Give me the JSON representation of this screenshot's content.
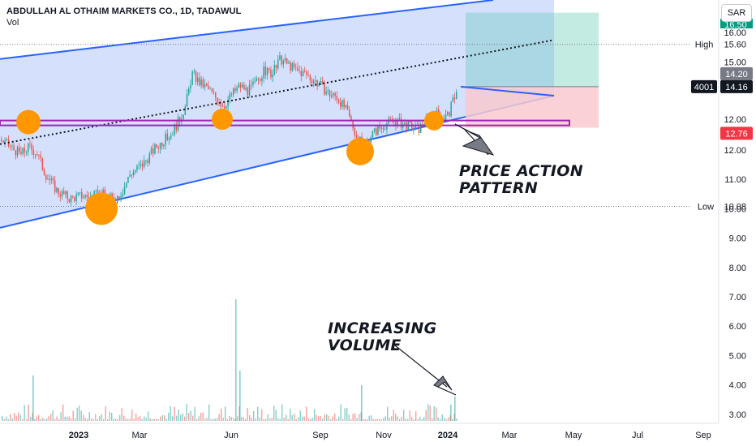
{
  "header": {
    "title": "ABDULLAH AL OTHAIM MARKETS CO., 1D, TADAWUL",
    "volume_label": "Vol"
  },
  "currency_button": "SAR",
  "annotations": {
    "price_action": [
      "PRICE ACTION",
      "PATTERN"
    ],
    "volume": [
      "INCREASING",
      "VOLUME"
    ]
  },
  "price_axis": {
    "ticks": [
      "16.00",
      "15.00",
      "12.00",
      "11.00",
      "10.00",
      "9.00",
      "8.00",
      "7.00",
      "6.00",
      "5.00",
      "4.00",
      "3.00"
    ],
    "partial_ticks": [
      "16.50",
      "12.00"
    ],
    "labels": {
      "high_text": "High",
      "high_value": "15.60",
      "low_text": "Low",
      "low_value": "10.08",
      "symbol": "4001",
      "last_price": "14.16",
      "target_price": "14.20",
      "stop_price": "12.76"
    },
    "colors": {
      "target_bg": "#787b86",
      "last_bg": "#131722",
      "stop_bg": "#f23645",
      "tp_bg": "#089981"
    }
  },
  "time_axis": {
    "ticks": [
      "2023",
      "Mar",
      "Jun",
      "Sep",
      "Nov",
      "2024",
      "Mar",
      "May",
      "Jul",
      "Sep"
    ],
    "bold": [
      "2023",
      "2024"
    ]
  },
  "chart_data": {
    "type": "candlestick",
    "symbol": "4001",
    "exchange": "TADAWUL",
    "interval": "1D",
    "currency": "SAR",
    "ylim": [
      2.9,
      17.2
    ],
    "daily_high": 15.6,
    "daily_low": 10.08,
    "last_price": 14.16,
    "horizontal_level": 12.95,
    "price_path": [
      {
        "x": 0,
        "y": 12.35
      },
      {
        "x": 15,
        "y": 12.05
      },
      {
        "x": 25,
        "y": 11.85
      },
      {
        "x": 35,
        "y": 12.1
      },
      {
        "x": 45,
        "y": 11.9
      },
      {
        "x": 55,
        "y": 11.2
      },
      {
        "x": 70,
        "y": 10.6
      },
      {
        "x": 85,
        "y": 10.35
      },
      {
        "x": 100,
        "y": 10.45
      },
      {
        "x": 110,
        "y": 10.4
      },
      {
        "x": 125,
        "y": 10.5
      },
      {
        "x": 140,
        "y": 10.3
      },
      {
        "x": 150,
        "y": 10.6
      },
      {
        "x": 160,
        "y": 11.2
      },
      {
        "x": 175,
        "y": 11.5
      },
      {
        "x": 190,
        "y": 12.05
      },
      {
        "x": 200,
        "y": 12.3
      },
      {
        "x": 210,
        "y": 12.55
      },
      {
        "x": 220,
        "y": 13.0
      },
      {
        "x": 228,
        "y": 13.5
      },
      {
        "x": 236,
        "y": 14.6
      },
      {
        "x": 245,
        "y": 14.3
      },
      {
        "x": 255,
        "y": 14.1
      },
      {
        "x": 265,
        "y": 13.8
      },
      {
        "x": 275,
        "y": 13.5
      },
      {
        "x": 285,
        "y": 13.9
      },
      {
        "x": 295,
        "y": 14.2
      },
      {
        "x": 305,
        "y": 14.0
      },
      {
        "x": 315,
        "y": 14.3
      },
      {
        "x": 325,
        "y": 14.7
      },
      {
        "x": 335,
        "y": 14.6
      },
      {
        "x": 345,
        "y": 15.1
      },
      {
        "x": 355,
        "y": 14.9
      },
      {
        "x": 365,
        "y": 14.7
      },
      {
        "x": 375,
        "y": 14.6
      },
      {
        "x": 385,
        "y": 14.4
      },
      {
        "x": 395,
        "y": 14.2
      },
      {
        "x": 405,
        "y": 13.9
      },
      {
        "x": 415,
        "y": 13.8
      },
      {
        "x": 425,
        "y": 13.4
      },
      {
        "x": 433,
        "y": 12.9
      },
      {
        "x": 440,
        "y": 12.4
      },
      {
        "x": 448,
        "y": 12.1
      },
      {
        "x": 456,
        "y": 12.5
      },
      {
        "x": 465,
        "y": 12.7
      },
      {
        "x": 475,
        "y": 12.9
      },
      {
        "x": 485,
        "y": 13.0
      },
      {
        "x": 495,
        "y": 12.9
      },
      {
        "x": 505,
        "y": 12.8
      },
      {
        "x": 515,
        "y": 12.7
      },
      {
        "x": 525,
        "y": 13.0
      },
      {
        "x": 535,
        "y": 13.3
      },
      {
        "x": 545,
        "y": 13.1
      },
      {
        "x": 552,
        "y": 13.2
      },
      {
        "x": 558,
        "y": 13.7
      },
      {
        "x": 563,
        "y": 14.16
      }
    ],
    "volume_spikes": [
      {
        "x": 290,
        "h": 150
      },
      {
        "x": 295,
        "h": 62
      },
      {
        "x": 40,
        "h": 56
      },
      {
        "x": 560,
        "h": 30
      },
      {
        "x": 555,
        "h": 20
      },
      {
        "x": 445,
        "h": 44
      }
    ],
    "channel": {
      "upper": [
        {
          "x": 0,
          "y": 15.1
        },
        {
          "x": 608,
          "y": 17.7
        }
      ],
      "lower": [
        {
          "x": 0,
          "y": 9.35
        },
        {
          "x": 683,
          "y": 13.85
        }
      ],
      "mid": [
        {
          "x": 0,
          "y": 12.2
        },
        {
          "x": 683,
          "y": 15.75
        }
      ]
    },
    "position": {
      "entry": 14.16,
      "target": 16.68,
      "stop": 12.76
    },
    "circles": [
      {
        "x": 35,
        "y": 12.95,
        "r": 15
      },
      {
        "x": 125,
        "y": 10.0,
        "r": 20
      },
      {
        "x": 274,
        "y": 13.05,
        "r": 13
      },
      {
        "x": 444,
        "y": 11.95,
        "r": 17
      },
      {
        "x": 535,
        "y": 13.0,
        "r": 12
      }
    ],
    "colors": {
      "up": "#26a69a",
      "down": "#ef5350",
      "channel_line": "#2962ff",
      "channel_fill": "#c5d5fb",
      "box": "#9c27b0",
      "circle": "#ff9800"
    }
  }
}
